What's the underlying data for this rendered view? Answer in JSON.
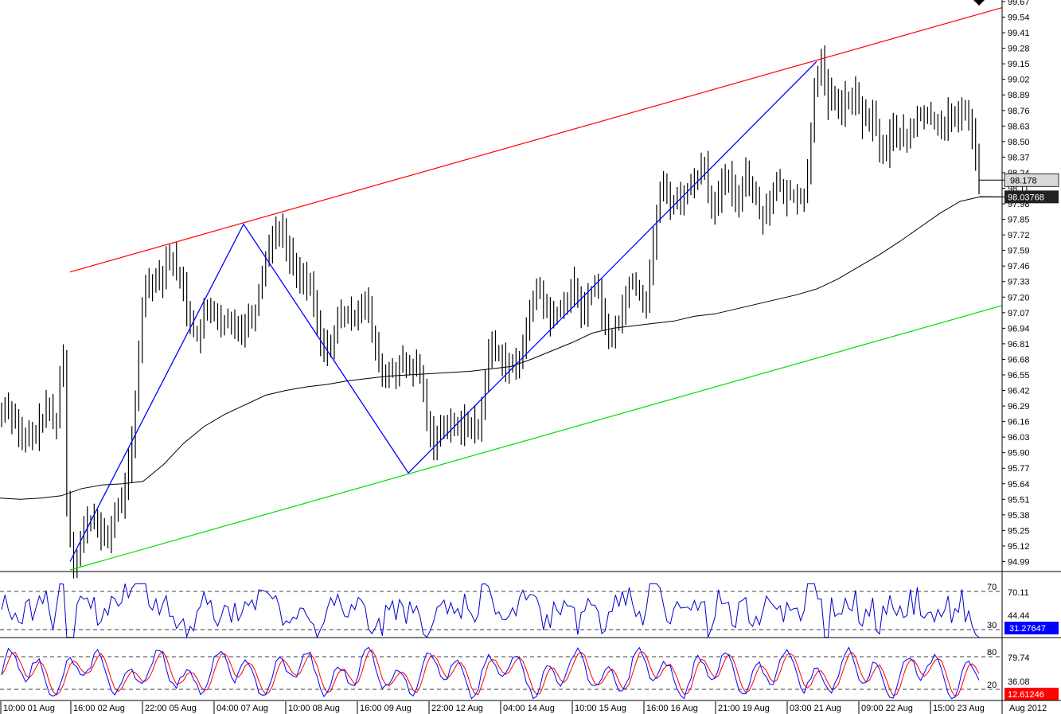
{
  "chart_data": {
    "type": "line",
    "price_panel": {
      "ylim": [
        94.92,
        99.67
      ],
      "y_ticks": [
        "99.67",
        "99.54",
        "99.41",
        "99.28",
        "99.15",
        "99.02",
        "98.89",
        "98.76",
        "98.63",
        "98.50",
        "98.37",
        "98.24",
        "98.11",
        "97.98",
        "97.85",
        "97.72",
        "97.59",
        "97.46",
        "97.33",
        "97.20",
        "97.07",
        "96.94",
        "96.81",
        "96.68",
        "96.55",
        "96.42",
        "96.29",
        "96.16",
        "96.03",
        "95.90",
        "95.77",
        "95.64",
        "95.51",
        "95.38",
        "95.25",
        "95.12",
        "94.99"
      ],
      "last_price_label": "98.178",
      "ma_label": "98.03768",
      "last_price": 98.178,
      "ma_value": 98.03768,
      "bars": {
        "count": 300,
        "close": [
          96.22,
          96.31,
          96.28,
          96.2,
          96.19,
          96.08,
          95.97,
          96.01,
          96.05,
          96.02,
          96.07,
          96.16,
          96.17,
          96.27,
          96.27,
          96.17,
          96.17,
          96.53,
          96.7,
          95.5,
          95.19,
          95.0,
          95.02,
          95.15,
          95.26,
          95.32,
          95.31,
          95.38,
          95.28,
          95.2,
          95.2,
          95.2,
          95.28,
          95.39,
          95.45,
          95.48,
          95.66,
          95.79,
          95.97,
          96.29,
          96.73,
          97.12,
          97.32,
          97.32,
          97.32,
          97.4,
          97.35,
          97.41,
          97.53,
          97.52,
          97.51,
          97.41,
          97.33,
          97.29,
          97.1,
          97.03,
          96.91,
          96.87,
          96.91,
          97.05,
          97.08,
          97.12,
          97.08,
          97.0,
          96.92,
          96.99,
          96.99,
          96.94,
          97.0,
          96.96,
          96.93,
          96.98,
          97.02,
          97.06,
          97.09,
          97.26,
          97.4,
          97.54,
          97.63,
          97.69,
          97.77,
          97.78,
          97.71,
          97.62,
          97.55,
          97.47,
          97.4,
          97.38,
          97.38,
          97.31,
          97.26,
          97.14,
          96.96,
          96.84,
          96.75,
          96.78,
          96.84,
          96.87,
          97.0,
          97.06,
          97.05,
          97.02,
          97.05,
          97.04,
          97.11,
          97.16,
          97.17,
          97.07,
          96.88,
          96.76,
          96.68,
          96.51,
          96.54,
          96.57,
          96.61,
          96.56,
          96.62,
          96.65,
          96.59,
          96.63,
          96.58,
          96.62,
          96.55,
          96.39,
          96.18,
          96.06,
          95.99,
          96.04,
          96.08,
          96.16,
          96.14,
          96.16,
          96.12,
          96.1,
          96.08,
          96.17,
          96.14,
          96.14,
          96.09,
          96.1,
          96.26,
          96.54,
          96.71,
          96.81,
          96.75,
          96.72,
          96.69,
          96.64,
          96.62,
          96.63,
          96.59,
          96.68,
          96.84,
          96.95,
          97.04,
          97.15,
          97.26,
          97.27,
          97.12,
          97.09,
          96.99,
          97.07,
          97.08,
          97.07,
          97.13,
          97.19,
          97.26,
          97.3,
          97.15,
          97.1,
          97.1,
          97.21,
          97.25,
          97.27,
          97.28,
          97.08,
          96.94,
          96.89,
          96.85,
          96.99,
          97.0,
          97.12,
          97.19,
          97.32,
          97.35,
          97.29,
          97.25,
          97.16,
          97.17,
          97.42,
          97.64,
          97.89,
          98.07,
          98.12,
          98.07,
          97.99,
          98.0,
          98.03,
          98.01,
          98.07,
          98.1,
          98.1,
          98.19,
          98.22,
          98.28,
          98.33,
          98.09,
          97.99,
          97.93,
          98.04,
          98.12,
          98.16,
          98.19,
          98.08,
          98.0,
          98.05,
          98.15,
          98.26,
          98.16,
          98.08,
          98.02,
          97.92,
          97.88,
          97.95,
          98.02,
          98.09,
          98.13,
          98.13,
          98.02,
          98.05,
          98.06,
          98.05,
          98.07,
          98.02,
          98.04,
          98.24,
          98.59,
          98.98,
          99.09,
          99.15,
          98.96,
          98.8,
          98.91,
          98.84,
          98.82,
          98.77,
          98.85,
          98.83,
          98.8,
          98.91,
          98.8,
          98.67,
          98.7,
          98.66,
          98.71,
          98.61,
          98.45,
          98.45,
          98.41,
          98.55,
          98.6,
          98.56,
          98.57,
          98.51,
          98.5,
          98.61,
          98.6,
          98.73,
          98.73,
          98.7,
          98.71,
          98.7,
          98.66,
          98.68,
          98.62,
          98.66,
          98.73,
          98.68,
          98.68,
          98.69,
          98.8,
          98.73,
          98.71,
          98.57,
          98.4,
          98.178
        ],
        "open_offset_note": ""
      },
      "ma_points": [
        95.52,
        95.51,
        95.52,
        95.54,
        95.6,
        95.63,
        95.64,
        95.66,
        95.8,
        95.98,
        96.12,
        96.22,
        96.3,
        96.38,
        96.42,
        96.45,
        96.47,
        96.5,
        96.52,
        96.54,
        96.55,
        96.56,
        96.57,
        96.58,
        96.6,
        96.62,
        96.68,
        96.75,
        96.82,
        96.9,
        96.94,
        96.96,
        96.98,
        97.0,
        97.04,
        97.06,
        97.1,
        97.14,
        97.18,
        97.22,
        97.27,
        97.35,
        97.45,
        97.55,
        97.66,
        97.78,
        97.9,
        98.0,
        98.04
      ],
      "channel_upper": {
        "from": [
          94.99,
          97.41
        ],
        "to_note": ""
      },
      "zigzag": [
        94.99,
        97.81,
        95.73,
        99.17
      ],
      "upper_line": [
        97.41,
        99.62
      ],
      "lower_line": [
        94.92,
        97.13
      ]
    },
    "rsi_panel": {
      "levels": [
        "70",
        "30"
      ],
      "ticks": [
        "70.11",
        "44.44"
      ],
      "last_label": "31.27647",
      "series_color": "#0000cc"
    },
    "stoch_panel": {
      "levels": [
        "80",
        "20"
      ],
      "ticks": [
        "79.74",
        "36.08"
      ],
      "last_label": "12.61246"
    },
    "x_ticks": [
      "10:00 01 Aug",
      "16:00 02 Aug",
      "22:00 05 Aug",
      "04:00 07 Aug",
      "10:00 08 Aug",
      "16:00 09 Aug",
      "22:00 12 Aug",
      "04:00 14 Aug",
      "10:00 15 Aug",
      "16:00 16 Aug",
      "21:00 19 Aug",
      "03:00 21 Aug",
      "09:00 22 Aug",
      "15:00 23 Aug"
    ],
    "x_axis_end_label": "Aug 2012",
    "colors": {
      "upper_line": "#ff0000",
      "lower_line": "#00dd00",
      "zigzag": "#0000ff",
      "bars": "#000000",
      "ma": "#000000",
      "rsi": "#0000cc",
      "stoch_k": "#0000ff",
      "stoch_d": "#ff0000",
      "rsi_badge": "#0000ff",
      "stoch_badge": "#ff0000"
    }
  }
}
